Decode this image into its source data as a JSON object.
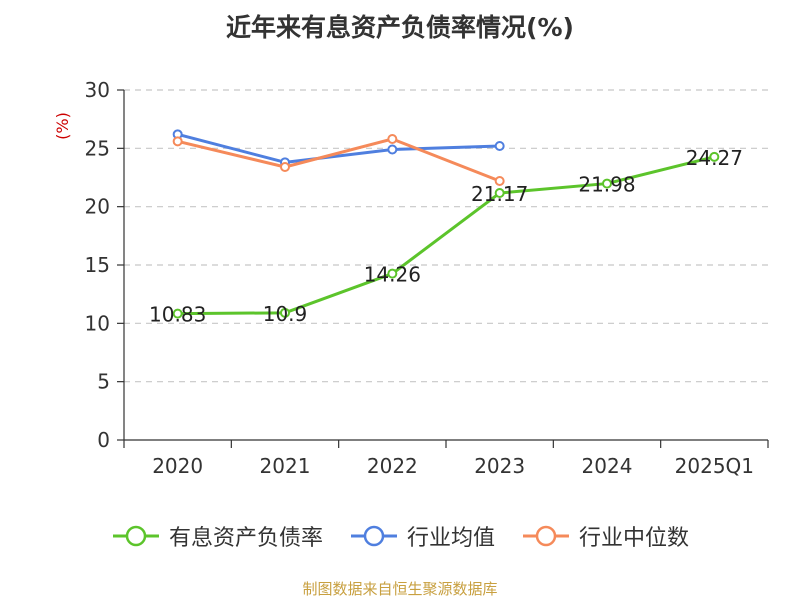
{
  "chart_data": {
    "type": "line",
    "title": "近年来有息资产负债率情况(%)",
    "ylabel": "(%)",
    "xlabel": "",
    "categories": [
      "2020",
      "2021",
      "2022",
      "2023",
      "2024",
      "2025Q1"
    ],
    "ylim": [
      0,
      30
    ],
    "yticks": [
      0,
      5,
      10,
      15,
      20,
      25,
      30
    ],
    "grid": true,
    "legend_position": "bottom",
    "series": [
      {
        "name": "有息资产负债率",
        "color": "#5cc42b",
        "values": [
          10.83,
          10.9,
          14.26,
          21.17,
          21.98,
          24.27
        ],
        "data_labels": [
          "10.83",
          "10.9",
          "14.26",
          "21.17",
          "21.98",
          "24.27"
        ]
      },
      {
        "name": "行业均值",
        "color": "#4f7fdf",
        "values": [
          26.2,
          23.8,
          24.9,
          25.2,
          null,
          null
        ]
      },
      {
        "name": "行业中位数",
        "color": "#f58a5a",
        "values": [
          25.6,
          23.4,
          25.8,
          22.2,
          null,
          null
        ]
      }
    ]
  },
  "source_note": "制图数据来自恒生聚源数据库"
}
